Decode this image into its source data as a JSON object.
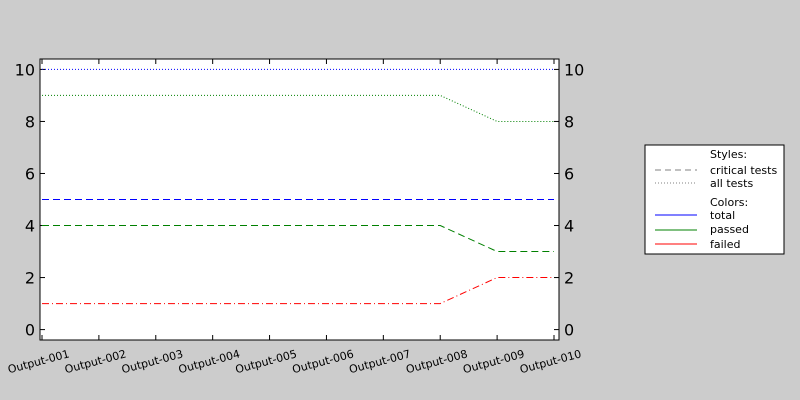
{
  "chart_data": {
    "type": "line",
    "categories": [
      "Output-001",
      "Output-002",
      "Output-003",
      "Output-004",
      "Output-005",
      "Output-006",
      "Output-007",
      "Output-008",
      "Output-009",
      "Output-010"
    ],
    "ylim": [
      -0.4,
      10.4
    ],
    "yticks": [
      0,
      2,
      4,
      6,
      8,
      10
    ],
    "grid": false,
    "legend_placement": "right",
    "series": [
      {
        "name": "total",
        "style": "all tests",
        "dash": "dotted",
        "color": "#0000ff",
        "values": [
          10,
          10,
          10,
          10,
          10,
          10,
          10,
          10,
          10,
          10
        ]
      },
      {
        "name": "passed",
        "style": "all tests",
        "dash": "dotted",
        "color": "#008000",
        "values": [
          9,
          9,
          9,
          9,
          9,
          9,
          9,
          9,
          8,
          8
        ]
      },
      {
        "name": "total",
        "style": "critical tests",
        "dash": "dashed",
        "color": "#0000ff",
        "values": [
          5,
          5,
          5,
          5,
          5,
          5,
          5,
          5,
          5,
          5
        ]
      },
      {
        "name": "passed",
        "style": "critical tests",
        "dash": "dashed",
        "color": "#008000",
        "values": [
          4,
          4,
          4,
          4,
          4,
          4,
          4,
          4,
          3,
          3
        ]
      },
      {
        "name": "failed",
        "style": "combined",
        "dash": "dashdot",
        "color": "#ff0000",
        "values": [
          1,
          1,
          1,
          1,
          1,
          1,
          1,
          1,
          2,
          2
        ]
      }
    ],
    "legend": {
      "styles_title": "Styles:",
      "styles": [
        {
          "label": "critical tests",
          "dash": "dashed",
          "color": "#808080"
        },
        {
          "label": "all tests",
          "dash": "dotted",
          "color": "#808080"
        }
      ],
      "colors_title": "Colors:",
      "colors": [
        {
          "label": "total",
          "color": "#0000ff"
        },
        {
          "label": "passed",
          "color": "#008000"
        },
        {
          "label": "failed",
          "color": "#ff0000"
        }
      ]
    }
  }
}
